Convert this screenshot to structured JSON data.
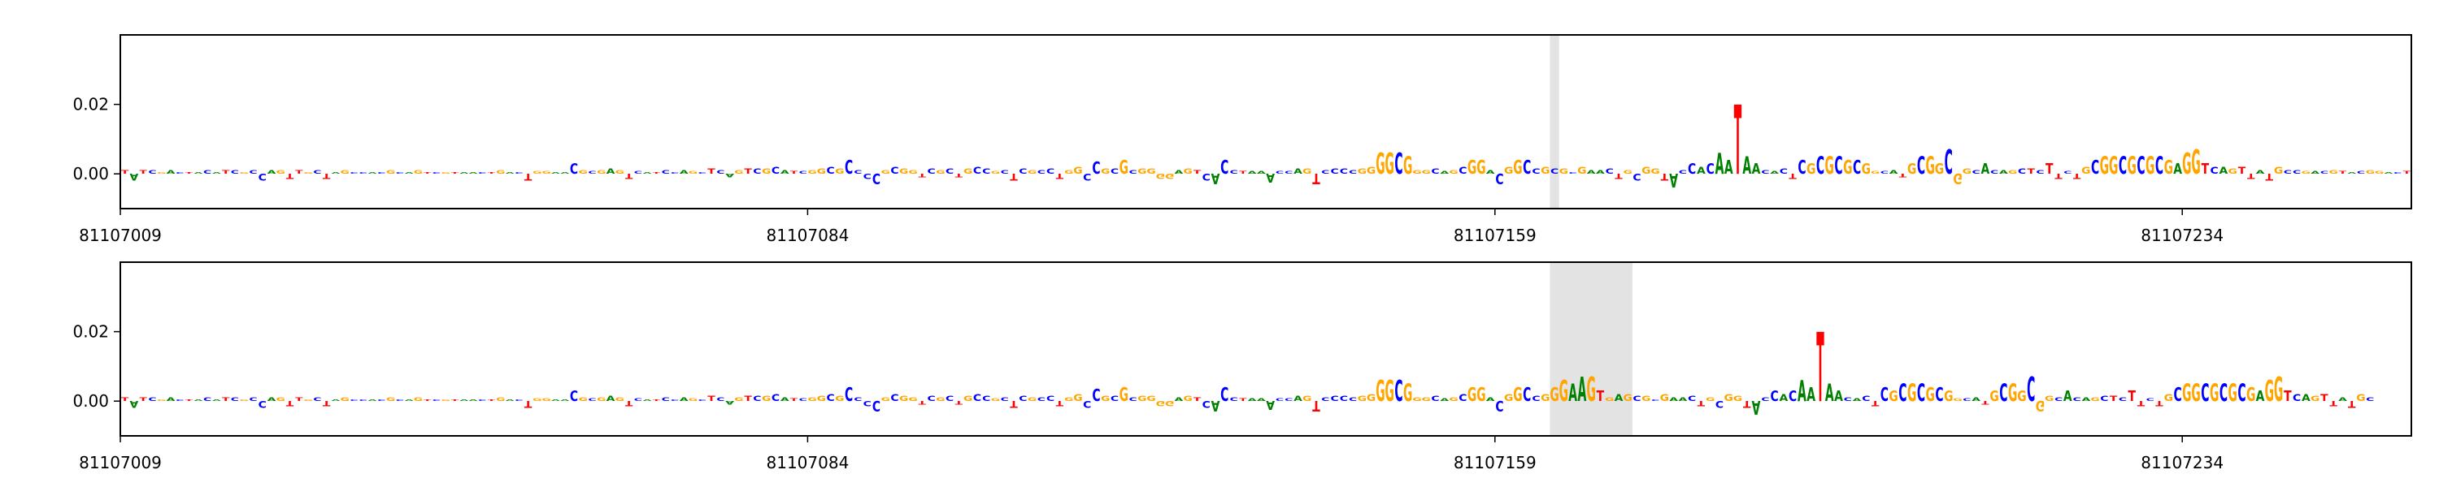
{
  "chart_data": [
    {
      "type": "logo",
      "xlim": [
        81107009,
        81107259
      ],
      "xticks": [
        81107009,
        81107084,
        81107159,
        81107234
      ],
      "ylim": [
        -0.01,
        0.04
      ],
      "yticks": [
        {
          "value": 0,
          "label": "0.00"
        },
        {
          "value": 0.02,
          "label": "0.02"
        }
      ],
      "highlight": [
        81107165,
        81107166
      ],
      "colors": {
        "A": "#008000",
        "C": "#0000ff",
        "G": "#ffa500",
        "T": "#ff0000"
      },
      "bases": [
        "T",
        "A",
        "T",
        "C",
        "G",
        "A",
        "C",
        "T",
        "A",
        "C",
        "A",
        "T",
        "C",
        "G",
        "C",
        "C",
        "A",
        "G",
        "T",
        "T",
        "G",
        "C",
        "T",
        "A",
        "G",
        "C",
        "C",
        "A",
        "C",
        "G",
        "C",
        "A",
        "G",
        "T",
        "C",
        "G",
        "T",
        "A",
        "A",
        "C",
        "T",
        "G",
        "A",
        "C",
        "T",
        "G",
        "G",
        "A",
        "A",
        "C",
        "G",
        "C",
        "G",
        "A",
        "G",
        "T",
        "C",
        "A",
        "T",
        "C",
        "C",
        "A",
        "G",
        "C",
        "T",
        "C",
        "A",
        "G",
        "T",
        "C",
        "G",
        "C",
        "A",
        "T",
        "C",
        "G",
        "G",
        "C",
        "G",
        "C",
        "C",
        "C",
        "C",
        "G",
        "C",
        "G",
        "G",
        "T",
        "C",
        "G",
        "C",
        "T",
        "G",
        "C",
        "C",
        "G",
        "C",
        "T",
        "C",
        "G",
        "C",
        "C",
        "T",
        "G",
        "G",
        "C",
        "C",
        "G",
        "C",
        "G",
        "C",
        "G",
        "G",
        "G",
        "G",
        "A",
        "G",
        "T",
        "C",
        "A",
        "C",
        "C",
        "T",
        "A",
        "A",
        "A",
        "C",
        "C",
        "A",
        "G",
        "T",
        "C",
        "C",
        "C",
        "C",
        "G",
        "G",
        "G",
        "G",
        "C",
        "G",
        "G",
        "G",
        "C",
        "A",
        "G",
        "C",
        "G",
        "G",
        "A",
        "C",
        "G",
        "G",
        "C",
        "C",
        "G",
        "C",
        "G",
        "C",
        "G",
        "A",
        "A",
        "C",
        "T",
        "G",
        "C",
        "G",
        "G",
        "T",
        "A",
        "C",
        "C",
        "A",
        "C",
        "A",
        "A",
        "T",
        "A",
        "A",
        "C",
        "A",
        "C",
        "T",
        "C",
        "G",
        "C",
        "G",
        "C",
        "G",
        "C",
        "G",
        "G",
        "C",
        "A",
        "T",
        "G",
        "C",
        "G",
        "G",
        "C",
        "G",
        "G",
        "C",
        "A",
        "C",
        "A",
        "G",
        "C",
        "T",
        "C",
        "T",
        "T",
        "C",
        "T",
        "G",
        "C",
        "G",
        "G",
        "C",
        "G",
        "C",
        "G",
        "C",
        "G",
        "A",
        "G",
        "G",
        "T",
        "C",
        "A",
        "G",
        "T",
        "T",
        "A",
        "T",
        "G",
        "C",
        "C",
        "G",
        "A",
        "C",
        "G",
        "T",
        "A",
        "C",
        "G",
        "G",
        "A",
        "C",
        "T"
      ],
      "values": [
        0.001,
        -0.002,
        0.001,
        0.001,
        0.0005,
        0.001,
        0.0005,
        0.0005,
        0.0005,
        0.001,
        0.0005,
        0.001,
        0.001,
        0.0005,
        0.001,
        -0.002,
        0.001,
        0.001,
        -0.0015,
        0.001,
        0.0005,
        0.001,
        -0.0015,
        0.0005,
        0.001,
        0.0005,
        0.0005,
        0.0005,
        0.0005,
        0.001,
        0.0005,
        0.0005,
        0.001,
        0.0005,
        0.0005,
        0.0005,
        0.0005,
        0.0005,
        0.0005,
        0.0005,
        0.0005,
        0.001,
        0.0005,
        0.0005,
        -0.002,
        0.0008,
        0.0008,
        0.0005,
        0.0005,
        0.003,
        0.001,
        0.0008,
        0.001,
        0.0015,
        0.001,
        -0.0015,
        0.0008,
        0.0005,
        0.0005,
        0.001,
        0.0005,
        0.001,
        0.0008,
        0.0005,
        0.0015,
        0.001,
        -0.001,
        0.001,
        0.0015,
        0.0015,
        0.0015,
        0.002,
        0.001,
        0.0008,
        0.0008,
        0.001,
        0.0015,
        0.002,
        0.0015,
        0.004,
        0.001,
        -0.0015,
        -0.003,
        0.001,
        0.002,
        0.0015,
        0.001,
        -0.001,
        0.0015,
        0.001,
        0.0015,
        -0.001,
        0.0015,
        0.002,
        0.0015,
        0.0008,
        0.001,
        -0.002,
        0.0015,
        0.001,
        0.001,
        0.0015,
        -0.0015,
        0.001,
        0.002,
        -0.002,
        0.0035,
        0.0015,
        0.0015,
        0.004,
        0.001,
        0.0015,
        0.0015,
        -0.0015,
        -0.0015,
        0.001,
        0.0015,
        0.001,
        -0.002,
        -0.003,
        0.004,
        0.001,
        0.0008,
        0.0008,
        0.0008,
        -0.0025,
        0.0008,
        0.0008,
        0.0015,
        0.0015,
        -0.003,
        0.001,
        0.0015,
        0.0015,
        0.001,
        0.0015,
        0.002,
        0.006,
        0.006,
        0.006,
        0.005,
        0.001,
        0.001,
        0.0015,
        0.0008,
        0.001,
        0.002,
        0.004,
        0.004,
        0.001,
        -0.003,
        0.002,
        0.004,
        0.004,
        0.0015,
        0.002,
        0.0015,
        0.0015,
        0.0005,
        0.002,
        0.001,
        0.001,
        0.0015,
        -0.0015,
        0.001,
        -0.002,
        0.002,
        0.0015,
        -0.002,
        -0.004,
        0.001,
        0.003,
        0.002,
        0.003,
        0.006,
        0.004,
        0.02,
        0.005,
        0.003,
        0.001,
        0.0008,
        0.0015,
        -0.0015,
        0.004,
        0.003,
        0.005,
        0.005,
        0.005,
        0.004,
        0.004,
        0.003,
        0.0008,
        0.0008,
        0.001,
        -0.001,
        0.003,
        0.005,
        0.005,
        0.003,
        0.007,
        -0.003,
        0.0015,
        0.001,
        0.003,
        0.001,
        0.001,
        0.001,
        0.0015,
        0.0015,
        0.001,
        0.003,
        -0.0015,
        0.0008,
        -0.0015,
        0.002,
        0.004,
        0.005,
        0.005,
        0.005,
        0.005,
        0.005,
        0.005,
        0.005,
        0.004,
        0.003,
        0.006,
        0.007,
        0.003,
        0.002,
        0.002,
        0.0015,
        0.002,
        -0.0015,
        0.001,
        -0.002,
        0.002,
        0.001,
        0.001,
        0.0008,
        0.0008,
        0.0008,
        0.001,
        0.0008,
        0.0005,
        0.0008,
        0.001,
        0.0008,
        0.0005,
        0.0005,
        0.0008
      ]
    },
    {
      "type": "logo",
      "xlim": [
        81107009,
        81107259
      ],
      "xticks": [
        81107009,
        81107084,
        81107159,
        81107234
      ],
      "ylim": [
        -0.01,
        0.04
      ],
      "yticks": [
        {
          "value": 0,
          "label": "0.00"
        },
        {
          "value": 0.02,
          "label": "0.02"
        }
      ],
      "highlight": [
        81107165,
        81107174
      ],
      "colors": {
        "A": "#008000",
        "C": "#0000ff",
        "G": "#ffa500",
        "T": "#ff0000"
      },
      "bases": [
        "T",
        "A",
        "T",
        "C",
        "G",
        "A",
        "C",
        "T",
        "A",
        "C",
        "A",
        "T",
        "C",
        "G",
        "C",
        "C",
        "A",
        "G",
        "T",
        "T",
        "G",
        "C",
        "T",
        "A",
        "G",
        "C",
        "C",
        "A",
        "C",
        "G",
        "C",
        "A",
        "G",
        "T",
        "C",
        "G",
        "T",
        "A",
        "A",
        "C",
        "T",
        "G",
        "A",
        "C",
        "T",
        "G",
        "G",
        "A",
        "A",
        "C",
        "G",
        "C",
        "G",
        "A",
        "G",
        "T",
        "C",
        "A",
        "T",
        "C",
        "C",
        "A",
        "G",
        "C",
        "T",
        "C",
        "A",
        "G",
        "T",
        "C",
        "G",
        "C",
        "A",
        "T",
        "C",
        "G",
        "G",
        "C",
        "G",
        "C",
        "C",
        "C",
        "C",
        "G",
        "C",
        "G",
        "G",
        "T",
        "C",
        "G",
        "C",
        "T",
        "G",
        "C",
        "C",
        "G",
        "C",
        "T",
        "C",
        "G",
        "C",
        "C",
        "T",
        "G",
        "G",
        "C",
        "C",
        "G",
        "C",
        "G",
        "C",
        "G",
        "G",
        "G",
        "G",
        "A",
        "G",
        "T",
        "C",
        "A",
        "C",
        "C",
        "T",
        "A",
        "A",
        "A",
        "C",
        "C",
        "A",
        "G",
        "T",
        "C",
        "C",
        "C",
        "C",
        "G",
        "G",
        "G",
        "G",
        "C",
        "G",
        "G",
        "G",
        "C",
        "A",
        "G",
        "C",
        "G",
        "G",
        "A",
        "C",
        "G",
        "G",
        "C",
        "C",
        "G",
        "G",
        "G",
        "A",
        "A",
        "G",
        "T",
        "G",
        "A",
        "G",
        "C",
        "G",
        "C",
        "G",
        "A",
        "A",
        "C",
        "T",
        "G",
        "C",
        "G",
        "G",
        "T",
        "A",
        "C",
        "C",
        "A",
        "C",
        "A",
        "A",
        "T",
        "A",
        "A",
        "C",
        "A",
        "C",
        "T",
        "C",
        "G",
        "C",
        "G",
        "C",
        "G",
        "C",
        "G",
        "G",
        "C",
        "A",
        "T",
        "G",
        "C",
        "G",
        "G",
        "C",
        "G",
        "G",
        "C",
        "A",
        "C",
        "A",
        "G",
        "C",
        "T",
        "C",
        "T",
        "T",
        "C",
        "T",
        "G",
        "C",
        "G",
        "G",
        "C",
        "G",
        "C",
        "G",
        "C",
        "G",
        "A",
        "G",
        "G",
        "T",
        "C",
        "A",
        "G",
        "T",
        "T",
        "A",
        "T",
        "G",
        "C"
      ],
      "values": [
        0.001,
        -0.002,
        0.001,
        0.001,
        0.0005,
        0.001,
        0.0005,
        0.0005,
        0.0005,
        0.001,
        0.0005,
        0.001,
        0.001,
        0.0005,
        0.001,
        -0.002,
        0.001,
        0.001,
        -0.0015,
        0.001,
        0.0005,
        0.001,
        -0.0015,
        0.0005,
        0.001,
        0.0005,
        0.0005,
        0.0005,
        0.0005,
        0.001,
        0.0005,
        0.0005,
        0.001,
        0.0005,
        0.0005,
        0.0005,
        0.0005,
        0.0005,
        0.0005,
        0.0005,
        0.0005,
        0.001,
        0.0005,
        0.0005,
        -0.002,
        0.0008,
        0.0008,
        0.0005,
        0.0005,
        0.003,
        0.001,
        0.0008,
        0.001,
        0.0015,
        0.001,
        -0.0015,
        0.0008,
        0.0005,
        0.0005,
        0.001,
        0.0005,
        0.001,
        0.0008,
        0.0005,
        0.0015,
        0.001,
        -0.001,
        0.001,
        0.0015,
        0.0015,
        0.0015,
        0.002,
        0.001,
        0.0008,
        0.0008,
        0.001,
        0.0015,
        0.002,
        0.0015,
        0.004,
        0.001,
        -0.0015,
        -0.003,
        0.001,
        0.002,
        0.0015,
        0.001,
        -0.001,
        0.0015,
        0.001,
        0.0015,
        -0.001,
        0.0015,
        0.002,
        0.0015,
        0.0008,
        0.001,
        -0.002,
        0.0015,
        0.001,
        0.001,
        0.0015,
        -0.0015,
        0.001,
        0.002,
        -0.002,
        0.0035,
        0.0015,
        0.0015,
        0.004,
        0.001,
        0.0015,
        0.0015,
        -0.0015,
        -0.0015,
        0.001,
        0.0015,
        0.001,
        -0.002,
        -0.003,
        0.004,
        0.001,
        0.0008,
        0.0008,
        0.0008,
        -0.0025,
        0.0008,
        0.0008,
        0.0015,
        0.0015,
        -0.003,
        0.001,
        0.0015,
        0.0015,
        0.001,
        0.0015,
        0.002,
        0.006,
        0.006,
        0.006,
        0.005,
        0.001,
        0.001,
        0.0015,
        0.0008,
        0.001,
        0.002,
        0.004,
        0.004,
        0.001,
        -0.003,
        0.002,
        0.004,
        0.004,
        0.0015,
        0.002,
        0.004,
        0.006,
        0.005,
        0.007,
        0.007,
        0.003,
        0.001,
        0.002,
        0.002,
        0.0015,
        0.0015,
        0.0005,
        0.002,
        0.001,
        0.001,
        0.0015,
        -0.0015,
        0.001,
        -0.002,
        0.002,
        0.0015,
        -0.002,
        -0.004,
        0.001,
        0.003,
        0.002,
        0.003,
        0.006,
        0.004,
        0.02,
        0.005,
        0.003,
        0.001,
        0.0008,
        0.0015,
        -0.0015,
        0.004,
        0.003,
        0.005,
        0.005,
        0.005,
        0.004,
        0.004,
        0.003,
        0.0008,
        0.0008,
        0.001,
        -0.001,
        0.003,
        0.005,
        0.005,
        0.003,
        0.007,
        -0.003,
        0.0015,
        0.001,
        0.003,
        0.001,
        0.001,
        0.001,
        0.0015,
        0.0015,
        0.001,
        0.003,
        -0.0015,
        0.0008,
        -0.0015,
        0.002,
        0.004,
        0.005,
        0.005,
        0.005,
        0.005,
        0.005,
        0.005,
        0.005,
        0.004,
        0.003,
        0.006,
        0.007,
        0.003,
        0.002,
        0.002,
        0.0015,
        0.002,
        -0.0015,
        0.001,
        -0.002,
        0.002,
        0.001
      ]
    }
  ]
}
